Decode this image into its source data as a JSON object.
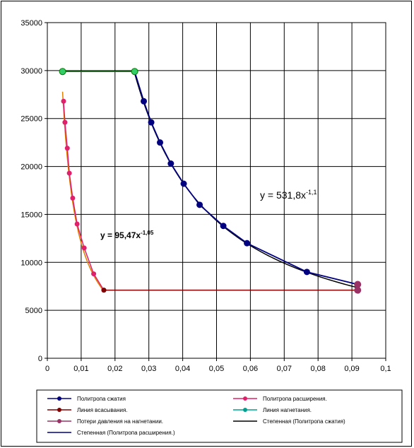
{
  "chart_data": {
    "type": "line",
    "xlim": [
      0,
      0.1
    ],
    "ylim": [
      0,
      35000
    ],
    "x_ticks": [
      "0",
      "0,01",
      "0,02",
      "0,03",
      "0,04",
      "0,05",
      "0,06",
      "0,07",
      "0,08",
      "0,09",
      "0,1"
    ],
    "y_ticks": [
      "0",
      "5000",
      "10000",
      "15000",
      "20000",
      "25000",
      "30000",
      "35000"
    ],
    "grid": true,
    "legend_position": "bottom",
    "series": [
      {
        "name": "Политропа сжатия",
        "color": "#000080",
        "marker": "circle",
        "points": [
          [
            0.0258,
            29900
          ],
          [
            0.0285,
            26800
          ],
          [
            0.0307,
            24600
          ],
          [
            0.0333,
            22500
          ],
          [
            0.0365,
            20300
          ],
          [
            0.0403,
            18200
          ],
          [
            0.045,
            16000
          ],
          [
            0.052,
            13800
          ],
          [
            0.059,
            12000
          ],
          [
            0.0767,
            9000
          ],
          [
            0.0917,
            7700
          ]
        ]
      },
      {
        "name": "Политропа расширения.",
        "color": "#e0206a",
        "marker": "circle",
        "points": [
          [
            0.0048,
            26800
          ],
          [
            0.0052,
            24600
          ],
          [
            0.0059,
            21900
          ],
          [
            0.0065,
            19300
          ],
          [
            0.0075,
            16700
          ],
          [
            0.0088,
            14000
          ],
          [
            0.0109,
            11500
          ],
          [
            0.0137,
            8800
          ],
          [
            0.0167,
            7100
          ]
        ]
      },
      {
        "name": "Линия всасывания.",
        "color": "#800000",
        "marker": "circle",
        "points": [
          [
            0.0167,
            7100
          ],
          [
            0.0917,
            7100
          ]
        ]
      },
      {
        "name": "Линия нагнетания.",
        "color": "#008000",
        "marker": "circle",
        "points": [
          [
            0.0045,
            29900
          ],
          [
            0.0258,
            29900
          ]
        ]
      },
      {
        "name": "Потери давления на нагнетании.",
        "color": "#993366",
        "marker": "circle",
        "points": [
          [
            0.0917,
            7700
          ],
          [
            0.0917,
            7100
          ]
        ]
      }
    ],
    "trendlines": [
      {
        "name": "Степенная  (Политропа сжатия)",
        "color": "#000000",
        "coef": 531.8,
        "exp": -1.1,
        "x_range": [
          0.0258,
          0.0917
        ],
        "label_prefix": "y = 531,8x",
        "label_exp": "-1,1"
      },
      {
        "name": "Степенная  (Политропа расширения.)",
        "color": "#e08000",
        "coef": 95.47,
        "exp": -1.05,
        "x_range": [
          0.0045,
          0.0167
        ],
        "label_prefix": "y = 95,47x",
        "label_exp": "-1,05"
      }
    ],
    "legend": [
      {
        "label": "Политропа сжатия",
        "color": "#000080",
        "marker": true
      },
      {
        "label": "Политропа расширения.",
        "color": "#e0206a",
        "marker": true
      },
      {
        "label": "Линия всасывания.",
        "color": "#800000",
        "marker": true
      },
      {
        "label": "Линия нагнетания.",
        "color": "#00a090",
        "marker": true
      },
      {
        "label": "Потери давления  на нагнетании.",
        "color": "#993366",
        "marker": true
      },
      {
        "label": "Степенная  (Политропа сжатия)",
        "color": "#000000",
        "marker": false
      },
      {
        "label": "Степенная  (Политропа расширения.)",
        "color": "#000080",
        "marker": false
      }
    ]
  }
}
